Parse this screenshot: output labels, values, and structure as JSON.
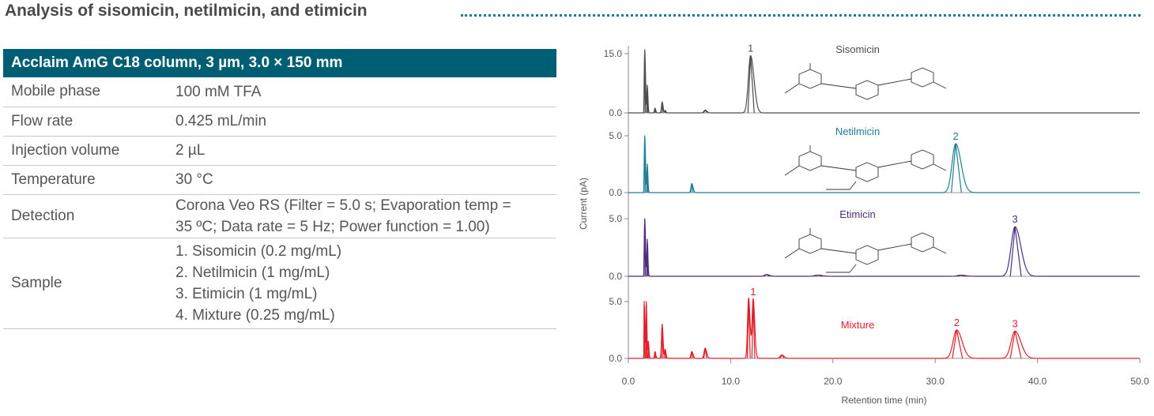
{
  "heading": "Analysis of sisomicin, netilmicin, and etimicin",
  "table": {
    "header": "Acclaim AmG C18 column, 3 µm, 3.0 × 150 mm",
    "rows": [
      {
        "label": "Mobile phase",
        "lines": [
          "100 mM TFA"
        ]
      },
      {
        "label": "Flow rate",
        "lines": [
          "0.425 mL/min"
        ]
      },
      {
        "label": "Injection volume",
        "lines": [
          "2 µL"
        ]
      },
      {
        "label": "Temperature",
        "lines": [
          "30 °C"
        ]
      },
      {
        "label": "Detection",
        "lines": [
          "Corona Veo RS (Filter = 5.0 s; Evaporation temp =",
          "35 ºC; Data rate = 5 Hz; Power function = 1.00)"
        ]
      },
      {
        "label": "Sample",
        "lines": [
          "1. Sisomicin (0.2 mg/mL)",
          "2. Netilmicin (1 mg/mL)",
          "3. Etimicin (1 mg/mL)",
          "4. Mixture (0.25 mg/mL)"
        ]
      }
    ]
  },
  "chart_data": {
    "type": "line",
    "xlabel": "Retention time (min)",
    "ylabel": "Current (pA)",
    "xlim": [
      0,
      50
    ],
    "xticks": [
      "0.0",
      "10.0",
      "20.0",
      "30.0",
      "40.0",
      "50.0"
    ],
    "series": [
      {
        "name": "Sisomicin",
        "color": "#4d4d4d",
        "ylim": [
          0,
          18
        ],
        "yticks": [
          "0.0",
          "15.0"
        ],
        "baseline_noise": 0.08,
        "peaks": [
          {
            "x": 1.6,
            "h": 16.0,
            "w": 0.05
          },
          {
            "x": 1.85,
            "h": 7.0,
            "w": 0.04
          },
          {
            "x": 2.6,
            "h": 1.2,
            "w": 0.05
          },
          {
            "x": 3.3,
            "h": 2.8,
            "w": 0.06
          },
          {
            "x": 3.6,
            "h": 0.6,
            "w": 0.05
          },
          {
            "x": 7.5,
            "h": 0.7,
            "w": 0.12
          },
          {
            "x": 11.95,
            "h": 14.5,
            "w": 0.22,
            "label": "1"
          }
        ],
        "structure_scale": 1.0
      },
      {
        "name": "Netilmicin",
        "color": "#1c7f99",
        "ylim": [
          0,
          6
        ],
        "yticks": [
          "0.0",
          "5.0"
        ],
        "baseline_noise": 0.03,
        "peaks": [
          {
            "x": 1.6,
            "h": 5.0,
            "w": 0.05
          },
          {
            "x": 1.85,
            "h": 2.5,
            "w": 0.04
          },
          {
            "x": 6.2,
            "h": 0.8,
            "w": 0.08
          },
          {
            "x": 32.0,
            "h": 4.3,
            "w": 0.35,
            "label": "2"
          }
        ]
      },
      {
        "name": "Etimicin",
        "color": "#4e2d7f",
        "ylim": [
          0,
          6
        ],
        "yticks": [
          "0.0",
          "5.0"
        ],
        "baseline_noise": 0.03,
        "peaks": [
          {
            "x": 1.6,
            "h": 5.0,
            "w": 0.05
          },
          {
            "x": 1.85,
            "h": 3.2,
            "w": 0.04
          },
          {
            "x": 13.5,
            "h": 0.15,
            "w": 0.2
          },
          {
            "x": 18.5,
            "h": 0.1,
            "w": 0.3
          },
          {
            "x": 32.5,
            "h": 0.1,
            "w": 0.3
          },
          {
            "x": 37.8,
            "h": 4.3,
            "w": 0.38,
            "label": "3"
          }
        ]
      },
      {
        "name": "Mixture",
        "color": "#e0202a",
        "ylim": [
          0,
          6
        ],
        "yticks": [
          "0.0",
          "5.0"
        ],
        "baseline_noise": 0.03,
        "peaks": [
          {
            "x": 1.55,
            "h": 5.0,
            "w": 0.04
          },
          {
            "x": 1.75,
            "h": 5.0,
            "w": 0.04
          },
          {
            "x": 1.95,
            "h": 1.5,
            "w": 0.04
          },
          {
            "x": 2.6,
            "h": 0.6,
            "w": 0.05
          },
          {
            "x": 3.3,
            "h": 3.0,
            "w": 0.06
          },
          {
            "x": 3.6,
            "h": 0.8,
            "w": 0.05
          },
          {
            "x": 6.2,
            "h": 0.6,
            "w": 0.08
          },
          {
            "x": 7.5,
            "h": 0.9,
            "w": 0.1
          },
          {
            "x": 11.75,
            "h": 5.3,
            "w": 0.1
          },
          {
            "x": 12.2,
            "h": 5.2,
            "w": 0.1,
            "label": "1"
          },
          {
            "x": 15.0,
            "h": 0.3,
            "w": 0.15
          },
          {
            "x": 32.1,
            "h": 2.5,
            "w": 0.35,
            "label": "2"
          },
          {
            "x": 37.8,
            "h": 2.4,
            "w": 0.38,
            "label": "3"
          }
        ]
      }
    ]
  }
}
